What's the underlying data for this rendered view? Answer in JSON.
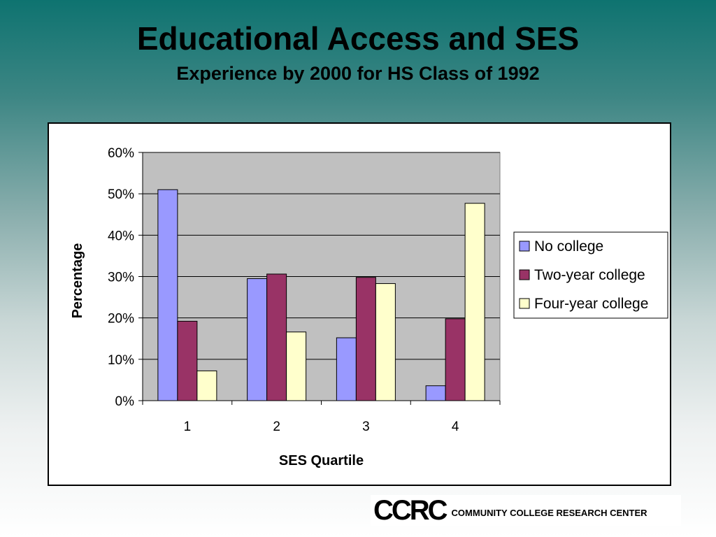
{
  "slide": {
    "title": "Educational Access and SES",
    "subtitle": "Experience by 2000 for HS Class of 1992"
  },
  "colors": {
    "plot_background": "#c0c0c0",
    "no_college": "#9999ff",
    "two_year_college": "#993366",
    "four_year_college": "#ffffcc"
  },
  "chart_data": {
    "type": "bar",
    "title": "",
    "xlabel": "SES Quartile",
    "ylabel": "Percentage",
    "categories": [
      "1",
      "2",
      "3",
      "4"
    ],
    "ylim": [
      0,
      0.6
    ],
    "yticks": [
      0,
      0.1,
      0.2,
      0.3,
      0.4,
      0.5,
      0.6
    ],
    "ytick_labels": [
      "0%",
      "10%",
      "20%",
      "30%",
      "40%",
      "50%",
      "60%"
    ],
    "grid": "horizontal",
    "legend_position": "right",
    "series": [
      {
        "name": "No college",
        "color": "#9999ff",
        "values": [
          0.51,
          0.295,
          0.152,
          0.036
        ]
      },
      {
        "name": "Two-year college",
        "color": "#993366",
        "values": [
          0.192,
          0.306,
          0.298,
          0.198
        ]
      },
      {
        "name": "Four-year college",
        "color": "#ffffcc",
        "values": [
          0.072,
          0.166,
          0.283,
          0.477
        ]
      }
    ]
  },
  "footer": {
    "logo_mark": "CCRC",
    "logo_text": "COMMUNITY COLLEGE RESEARCH CENTER"
  }
}
